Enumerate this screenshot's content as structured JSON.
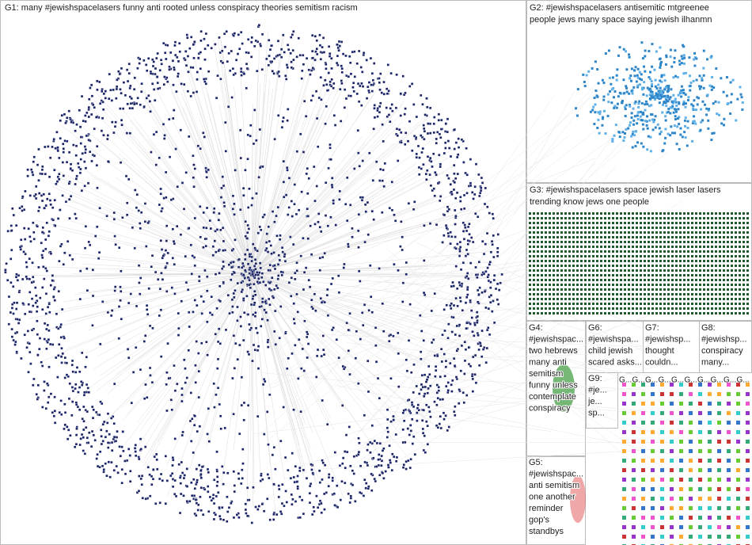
{
  "groups": [
    {
      "id": "G1",
      "lines": [
        "G1: many #jewishspacelasers funny anti rooted unless conspiracy theories semitism racism"
      ]
    },
    {
      "id": "G2",
      "lines": [
        "G2: #jewishspacelasers antisemitic mtgreenee",
        "people jews many space saying jewish ilhanmn"
      ]
    },
    {
      "id": "G3",
      "lines": [
        "G3: #jewishspacelasers space jewish laser lasers",
        "trending know jews one people"
      ]
    },
    {
      "id": "G4",
      "lines": [
        "G4:",
        "#jewishspac...",
        "two hebrews",
        "many anti",
        "semitism",
        "funny unless",
        "contemplate",
        "conspiracy"
      ]
    },
    {
      "id": "G6",
      "lines": [
        "G6:",
        "#jewishspa...",
        "child jewish",
        "scared asks..."
      ]
    },
    {
      "id": "G7",
      "lines": [
        "G7:",
        "#jewishsp...",
        "thought",
        "couldn..."
      ]
    },
    {
      "id": "G8",
      "lines": [
        "G8:",
        "#jewishsp...",
        "conspiracy",
        "many..."
      ]
    },
    {
      "id": "G5",
      "lines": [
        "G5:",
        "#jewishspac...",
        "anti semitism",
        "one another",
        "reminder",
        "gop's",
        "standbys"
      ]
    },
    {
      "id": "G9",
      "lines": [
        "G9:",
        "#je...",
        "je...",
        "sp..."
      ]
    }
  ],
  "small_labels": [
    "G...",
    "G...",
    "G...",
    "G...",
    "G...",
    "G...",
    "G...",
    "G...",
    "G...",
    "G..."
  ]
}
